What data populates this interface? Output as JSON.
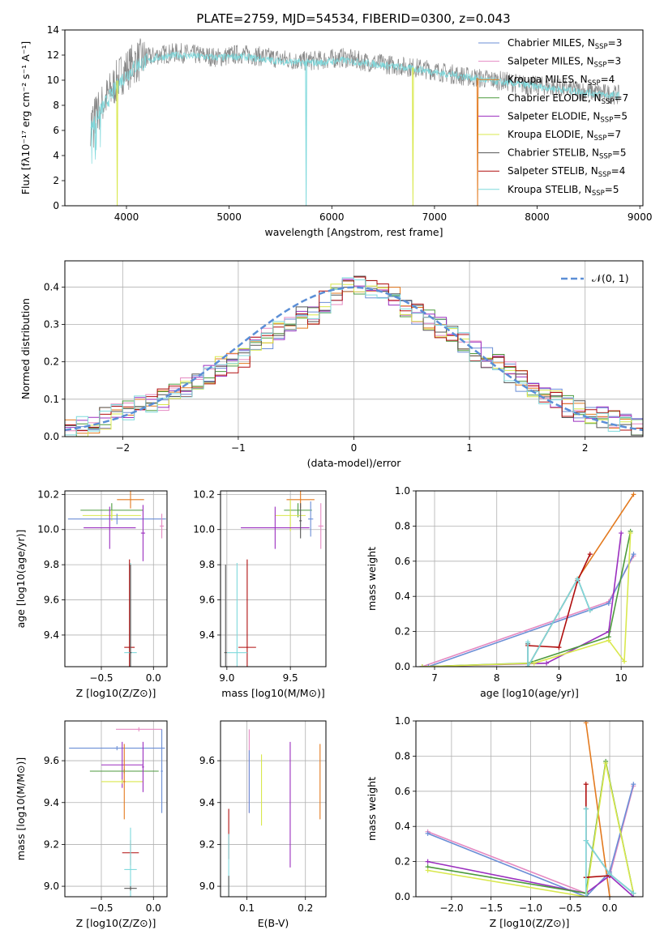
{
  "title": "PLATE=2759, MJD=54534, FIBERID=0300, z=0.043",
  "colors": {
    "chabrier_miles": "#6b8ed6",
    "salpeter_miles": "#e58ac2",
    "kroupa_miles": "#e37a1f",
    "chabrier_elodie": "#4c9a3d",
    "salpeter_elodie": "#9b2fbf",
    "kroupa_elodie": "#d9e84d",
    "chabrier_stelib": "#555555",
    "salpeter_stelib": "#b00e0e",
    "kroupa_stelib": "#7fd9dc",
    "gaussian": "#5b8ed6"
  },
  "legend_spectrum": [
    {
      "name": "Chabrier MILES",
      "n": "3",
      "color": "#6b8ed6"
    },
    {
      "name": "Salpeter MILES",
      "n": "3",
      "color": "#e58ac2"
    },
    {
      "name": "Kroupa MILES",
      "n": "4",
      "color": "#e37a1f"
    },
    {
      "name": "Chabrier ELODIE",
      "n": "7",
      "color": "#4c9a3d"
    },
    {
      "name": "Salpeter ELODIE",
      "n": "5",
      "color": "#9b2fbf"
    },
    {
      "name": "Kroupa ELODIE",
      "n": "7",
      "color": "#d9e84d"
    },
    {
      "name": "Chabrier STELIB",
      "n": "5",
      "color": "#555555"
    },
    {
      "name": "Salpeter STELIB",
      "n": "4",
      "color": "#b00e0e"
    },
    {
      "name": "Kroupa STELIB",
      "n": "5",
      "color": "#7fd9dc"
    }
  ],
  "chart_data": [
    {
      "id": "spectrum",
      "type": "line",
      "xlabel": "wavelength [Angstrom, rest frame]",
      "ylabel": "Flux [fλ10⁻¹⁷ erg cm⁻² s⁻¹ A⁻¹]",
      "xlim": [
        3400,
        9030
      ],
      "ylim": [
        0,
        14
      ],
      "xticks": [
        4000,
        5000,
        6000,
        7000,
        8000,
        9000
      ],
      "yticks": [
        0,
        2,
        4,
        6,
        8,
        10,
        12,
        14
      ],
      "grid": false,
      "legend_position": "top-right",
      "x": [
        3650,
        3800,
        3950,
        4100,
        4300,
        4500,
        4700,
        4900,
        5100,
        5300,
        5500,
        5700,
        5900,
        6100,
        6300,
        6500,
        6700,
        6900,
        7100,
        7300,
        7500,
        7700,
        7900,
        8100,
        8300,
        8500,
        8700,
        8800
      ],
      "series": [
        {
          "key": "observed",
          "color": "#888888",
          "values": [
            6.5,
            8.5,
            10.5,
            11.5,
            12.0,
            12.2,
            12.0,
            11.8,
            12.1,
            11.9,
            11.7,
            11.5,
            11.6,
            11.8,
            11.5,
            11.3,
            11.1,
            10.9,
            10.6,
            10.3,
            10.1,
            9.9,
            9.6,
            9.5,
            9.3,
            9.1,
            8.9,
            8.8
          ]
        },
        {
          "key": "model",
          "color": "#7fd9dc",
          "values": [
            6.3,
            8.2,
            10.0,
            11.2,
            11.8,
            12.0,
            11.9,
            11.8,
            11.9,
            11.7,
            11.5,
            11.4,
            11.4,
            11.6,
            11.4,
            11.2,
            11.0,
            10.8,
            10.5,
            10.3,
            10.0,
            9.8,
            9.6,
            9.4,
            9.2,
            9.0,
            8.8,
            8.8
          ]
        }
      ],
      "dips": [
        {
          "x": 3910,
          "color": "#d9e84d"
        },
        {
          "x": 5750,
          "color": "#7fd9dc"
        },
        {
          "x": 6790,
          "color": "#d9e84d"
        },
        {
          "x": 7420,
          "color": "#e37a1f"
        }
      ]
    },
    {
      "id": "residual-hist",
      "type": "bar",
      "xlabel": "(data-model)/error",
      "ylabel": "Normed distribution",
      "xlim": [
        -2.5,
        2.5
      ],
      "ylim": [
        0,
        0.47
      ],
      "xticks": [
        -2,
        -1,
        0,
        1,
        2
      ],
      "yticks": [
        0.0,
        0.1,
        0.2,
        0.3,
        0.4
      ],
      "grid": true,
      "legend_position": "top-right",
      "legend_label": "𝒩(0, 1)",
      "bin_start": -2.5,
      "bin_width": 0.1,
      "values": [
        0.02,
        0.03,
        0.03,
        0.05,
        0.06,
        0.07,
        0.08,
        0.09,
        0.1,
        0.12,
        0.13,
        0.15,
        0.17,
        0.19,
        0.2,
        0.21,
        0.24,
        0.26,
        0.28,
        0.3,
        0.32,
        0.33,
        0.36,
        0.38,
        0.4,
        0.41,
        0.4,
        0.39,
        0.37,
        0.35,
        0.33,
        0.31,
        0.29,
        0.27,
        0.25,
        0.23,
        0.21,
        0.19,
        0.17,
        0.15,
        0.13,
        0.11,
        0.1,
        0.08,
        0.07,
        0.06,
        0.05,
        0.04,
        0.03,
        0.03
      ]
    },
    {
      "id": "age-vs-z",
      "type": "scatter",
      "xlabel": "Z [log10(Z/Z⊙)]",
      "ylabel": "age  [log10(age/yr)]",
      "xlim": [
        -0.85,
        0.13
      ],
      "ylim": [
        9.22,
        10.22
      ],
      "xticks": [
        -0.5,
        0.0
      ],
      "yticks": [
        9.4,
        9.6,
        9.8,
        10.0,
        10.2
      ],
      "grid": true,
      "points": [
        {
          "x": -0.22,
          "xerr": 0.13,
          "y": 10.17,
          "yerr": 0.05,
          "color": "#e37a1f"
        },
        {
          "x": -0.4,
          "xerr": 0.3,
          "y": 10.11,
          "yerr": 0.04,
          "color": "#4c9a3d"
        },
        {
          "x": -0.4,
          "xerr": 0.28,
          "y": 10.08,
          "yerr": 0.03,
          "color": "#d9e84d"
        },
        {
          "x": -0.35,
          "xerr": 0.47,
          "y": 10.06,
          "yerr": 0.03,
          "color": "#6b8ed6"
        },
        {
          "x": -0.42,
          "xerr": 0.25,
          "y": 10.01,
          "yerr": 0.12,
          "color": "#9b2fbf"
        },
        {
          "x": 0.08,
          "xerr": 0.02,
          "y": 10.02,
          "yerr": 0.07,
          "color": "#e58ac2"
        },
        {
          "x": -0.1,
          "xerr": 0.02,
          "y": 9.98,
          "yerr": 0.16,
          "color": "#9b2fbf"
        },
        {
          "x": -0.23,
          "xerr": 0.05,
          "y": 9.33,
          "yerr": 0.5,
          "color": "#b00e0e"
        },
        {
          "x": -0.22,
          "xerr": 0.06,
          "y": 9.3,
          "yerr": 0.51,
          "color": "#7fd9dc"
        },
        {
          "x": -0.22,
          "xerr": 0.01,
          "y": 9.3,
          "yerr": 0.5,
          "color": "#555555"
        }
      ]
    },
    {
      "id": "age-vs-mass",
      "type": "scatter",
      "xlabel": "mass [log10(M/M⊙)]",
      "ylabel": "",
      "xlim": [
        8.95,
        9.78
      ],
      "ylim": [
        9.22,
        10.22
      ],
      "xticks": [
        9.0,
        9.5
      ],
      "yticks": [
        9.4,
        9.6,
        9.8,
        10.0,
        10.2
      ],
      "grid": true,
      "points": [
        {
          "x": 9.58,
          "xerr": 0.11,
          "y": 10.17,
          "yerr": 0.05,
          "color": "#e37a1f"
        },
        {
          "x": 9.56,
          "xerr": 0.11,
          "y": 10.11,
          "yerr": 0.04,
          "color": "#4c9a3d"
        },
        {
          "x": 9.5,
          "xerr": 0.12,
          "y": 10.08,
          "yerr": 0.09,
          "color": "#d9e84d"
        },
        {
          "x": 9.66,
          "xerr": 0.02,
          "y": 10.06,
          "yerr": 0.1,
          "color": "#6b8ed6"
        },
        {
          "x": 9.38,
          "xerr": 0.27,
          "y": 10.01,
          "yerr": 0.12,
          "color": "#9b2fbf"
        },
        {
          "x": 9.74,
          "xerr": 0.02,
          "y": 10.02,
          "yerr": 0.13,
          "color": "#e58ac2"
        },
        {
          "x": 9.58,
          "xerr": 0.01,
          "y": 10.05,
          "yerr": 0.1,
          "color": "#555555"
        },
        {
          "x": 9.16,
          "xerr": 0.07,
          "y": 9.33,
          "yerr": 0.5,
          "color": "#b00e0e"
        },
        {
          "x": 9.08,
          "xerr": 0.08,
          "y": 9.3,
          "yerr": 0.51,
          "color": "#7fd9dc"
        },
        {
          "x": 8.99,
          "xerr": 0.01,
          "y": 9.3,
          "yerr": 0.5,
          "color": "#555555"
        }
      ]
    },
    {
      "id": "massweight-vs-age",
      "type": "line",
      "xlabel": "age  [log10(age/yr)]",
      "ylabel": "mass weight",
      "xlim": [
        6.7,
        10.35
      ],
      "ylim": [
        0,
        1.0
      ],
      "xticks": [
        7,
        8,
        9,
        10
      ],
      "yticks": [
        0.0,
        0.2,
        0.4,
        0.6,
        0.8,
        1.0
      ],
      "grid": true,
      "series": [
        {
          "color": "#e37a1f",
          "x": [
            8.5,
            9.3,
            10.2
          ],
          "y": [
            0.0,
            0.5,
            0.98
          ]
        },
        {
          "color": "#e58ac2",
          "x": [
            6.8,
            9.8,
            10.2
          ],
          "y": [
            0.0,
            0.37,
            0.63
          ]
        },
        {
          "color": "#6b8ed6",
          "x": [
            6.9,
            9.8,
            10.2
          ],
          "y": [
            0.0,
            0.36,
            0.64
          ]
        },
        {
          "color": "#9b2fbf",
          "x": [
            6.8,
            8.8,
            9.8,
            10.0
          ],
          "y": [
            0.0,
            0.02,
            0.2,
            0.76
          ]
        },
        {
          "color": "#4c9a3d",
          "x": [
            6.8,
            8.5,
            9.8,
            10.15
          ],
          "y": [
            0.0,
            0.02,
            0.17,
            0.77
          ]
        },
        {
          "color": "#d9e84d",
          "x": [
            6.8,
            8.6,
            9.8,
            10.05,
            10.15
          ],
          "y": [
            0.0,
            0.02,
            0.15,
            0.03,
            0.76
          ]
        },
        {
          "color": "#b00e0e",
          "x": [
            8.5,
            9.0,
            9.3,
            9.5
          ],
          "y": [
            0.12,
            0.11,
            0.49,
            0.64
          ]
        },
        {
          "color": "#555555",
          "x": [
            8.5,
            8.5,
            9.3,
            9.5
          ],
          "y": [
            0.13,
            0.0,
            0.5,
            0.32
          ]
        },
        {
          "color": "#7fd9dc",
          "x": [
            8.5,
            8.5,
            9.3,
            9.5
          ],
          "y": [
            0.14,
            0.0,
            0.5,
            0.32
          ]
        }
      ]
    },
    {
      "id": "mass-vs-z",
      "type": "scatter",
      "xlabel": "Z [log10(Z/Z⊙)]",
      "ylabel": "mass [log10(M/M⊙)]",
      "xlim": [
        -0.85,
        0.13
      ],
      "ylim": [
        8.95,
        9.79
      ],
      "xticks": [
        -0.5,
        0.0
      ],
      "yticks": [
        9.0,
        9.2,
        9.4,
        9.6
      ],
      "grid": true,
      "points": [
        {
          "x": -0.14,
          "xerr": 0.22,
          "y": 9.75,
          "yerr": 0.01,
          "color": "#e58ac2"
        },
        {
          "x": -0.35,
          "xerr": 0.46,
          "y": 9.66,
          "yerr": 0.01,
          "color": "#6b8ed6"
        },
        {
          "x": -0.3,
          "xerr": 0.2,
          "y": 9.58,
          "yerr": 0.11,
          "color": "#9b2fbf"
        },
        {
          "x": -0.28,
          "xerr": 0.33,
          "y": 9.55,
          "yerr": 0.01,
          "color": "#4c9a3d"
        },
        {
          "x": -0.3,
          "xerr": 0.2,
          "y": 9.5,
          "yerr": 0.01,
          "color": "#d9e84d"
        },
        {
          "x": -0.28,
          "xerr": 0.01,
          "y": 9.5,
          "yerr": 0.18,
          "color": "#e37a1f"
        },
        {
          "x": -0.1,
          "xerr": 0.01,
          "y": 9.57,
          "yerr": 0.12,
          "color": "#9b2fbf"
        },
        {
          "x": 0.08,
          "xerr": 0.01,
          "y": 9.55,
          "yerr": 0.2,
          "color": "#6b8ed6"
        },
        {
          "x": -0.22,
          "xerr": 0.08,
          "y": 9.16,
          "yerr": 0.06,
          "color": "#b00e0e"
        },
        {
          "x": -0.22,
          "xerr": 0.06,
          "y": 9.08,
          "yerr": 0.2,
          "color": "#7fd9dc"
        },
        {
          "x": -0.22,
          "xerr": 0.06,
          "y": 8.99,
          "yerr": 0.01,
          "color": "#555555"
        }
      ]
    },
    {
      "id": "mass-vs-ebv",
      "type": "scatter",
      "xlabel": "E(B-V)",
      "ylabel": "",
      "xlim": [
        0.055,
        0.235
      ],
      "ylim": [
        8.95,
        9.79
      ],
      "xticks": [
        0.1,
        0.2
      ],
      "yticks": [
        9.0,
        9.2,
        9.4,
        9.6
      ],
      "grid": true,
      "points": [
        {
          "x": 0.104,
          "xerr": 0.0,
          "y": 9.55,
          "yerr": 0.2,
          "color": "#e58ac2"
        },
        {
          "x": 0.104,
          "xerr": 0.0,
          "y": 9.5,
          "yerr": 0.15,
          "color": "#6b8ed6"
        },
        {
          "x": 0.125,
          "xerr": 0.0,
          "y": 9.46,
          "yerr": 0.17,
          "color": "#d9e84d"
        },
        {
          "x": 0.174,
          "xerr": 0.0,
          "y": 9.39,
          "yerr": 0.3,
          "color": "#9b2fbf"
        },
        {
          "x": 0.225,
          "xerr": 0.0,
          "y": 9.5,
          "yerr": 0.18,
          "color": "#e37a1f"
        },
        {
          "x": 0.069,
          "xerr": 0.0,
          "y": 9.25,
          "yerr": 0.12,
          "color": "#b00e0e"
        },
        {
          "x": 0.069,
          "xerr": 0.0,
          "y": 9.1,
          "yerr": 0.15,
          "color": "#7fd9dc"
        },
        {
          "x": 0.069,
          "xerr": 0.0,
          "y": 9.0,
          "yerr": 0.05,
          "color": "#555555"
        }
      ]
    },
    {
      "id": "massweight-vs-z",
      "type": "line",
      "xlabel": "Z [log10(Z/Z⊙)]",
      "ylabel": "mass weight",
      "xlim": [
        -2.45,
        0.42
      ],
      "ylim": [
        0,
        1.0
      ],
      "xticks": [
        -2.0,
        -1.5,
        -1.0,
        -0.5,
        0.0
      ],
      "yticks": [
        0.0,
        0.2,
        0.4,
        0.6,
        0.8,
        1.0
      ],
      "grid": true,
      "series": [
        {
          "color": "#e37a1f",
          "x": [
            -0.3,
            0.0
          ],
          "y": [
            0.99,
            0.0
          ]
        },
        {
          "color": "#e58ac2",
          "x": [
            -2.3,
            -0.3,
            0.0,
            0.3
          ],
          "y": [
            0.37,
            0.02,
            0.12,
            0.63
          ]
        },
        {
          "color": "#6b8ed6",
          "x": [
            -2.3,
            -0.3,
            0.0,
            0.3
          ],
          "y": [
            0.36,
            0.0,
            0.14,
            0.64
          ]
        },
        {
          "color": "#9b2fbf",
          "x": [
            -2.3,
            -0.3,
            0.0,
            0.3
          ],
          "y": [
            0.2,
            0.02,
            0.12,
            0.0
          ]
        },
        {
          "color": "#4c9a3d",
          "x": [
            -2.3,
            -0.3,
            -0.05,
            0.3
          ],
          "y": [
            0.17,
            0.02,
            0.77,
            0.02
          ]
        },
        {
          "color": "#d9e84d",
          "x": [
            -2.3,
            -0.3,
            -0.05,
            0.3
          ],
          "y": [
            0.15,
            0.0,
            0.76,
            0.02
          ]
        },
        {
          "color": "#b00e0e",
          "x": [
            -0.3,
            -0.3,
            0.0,
            -0.3
          ],
          "y": [
            0.64,
            0.11,
            0.12,
            0.11
          ]
        },
        {
          "color": "#555555",
          "x": [
            -0.3,
            -0.3,
            0.0,
            0.3
          ],
          "y": [
            0.5,
            0.32,
            0.13,
            0.02
          ]
        },
        {
          "color": "#7fd9dc",
          "x": [
            -0.3,
            -0.3,
            -0.3,
            0.0,
            0.3
          ],
          "y": [
            0.5,
            0.0,
            0.32,
            0.13,
            0.02
          ]
        }
      ]
    }
  ]
}
